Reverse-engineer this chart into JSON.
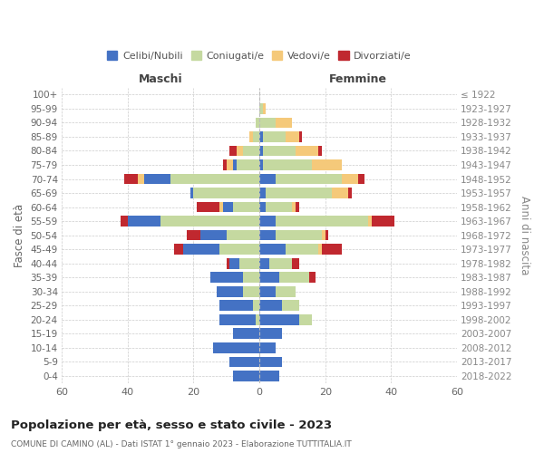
{
  "age_groups": [
    "0-4",
    "5-9",
    "10-14",
    "15-19",
    "20-24",
    "25-29",
    "30-34",
    "35-39",
    "40-44",
    "45-49",
    "50-54",
    "55-59",
    "60-64",
    "65-69",
    "70-74",
    "75-79",
    "80-84",
    "85-89",
    "90-94",
    "95-99",
    "100+"
  ],
  "birth_years": [
    "2018-2022",
    "2013-2017",
    "2008-2012",
    "2003-2007",
    "1998-2002",
    "1993-1997",
    "1988-1992",
    "1983-1987",
    "1978-1982",
    "1973-1977",
    "1968-1972",
    "1963-1967",
    "1958-1962",
    "1953-1957",
    "1948-1952",
    "1943-1947",
    "1938-1942",
    "1933-1937",
    "1928-1932",
    "1923-1927",
    "≤ 1922"
  ],
  "colors": {
    "celibi": "#4472C4",
    "coniugati": "#C5D9A0",
    "vedovi": "#F5C97A",
    "divorziati": "#C0282F"
  },
  "males": {
    "celibi": [
      8,
      9,
      14,
      8,
      11,
      10,
      8,
      10,
      3,
      11,
      8,
      10,
      3,
      1,
      8,
      1,
      0,
      0,
      0,
      0,
      0
    ],
    "coniugati": [
      0,
      0,
      0,
      0,
      1,
      2,
      5,
      5,
      6,
      12,
      10,
      30,
      8,
      20,
      27,
      7,
      5,
      2,
      1,
      0,
      0
    ],
    "vedovi": [
      0,
      0,
      0,
      0,
      0,
      0,
      0,
      0,
      0,
      0,
      0,
      0,
      1,
      0,
      2,
      2,
      2,
      1,
      0,
      0,
      0
    ],
    "divorziati": [
      0,
      0,
      0,
      0,
      0,
      0,
      0,
      0,
      1,
      3,
      4,
      2,
      7,
      0,
      4,
      1,
      2,
      0,
      0,
      0,
      0
    ]
  },
  "females": {
    "nubili": [
      6,
      7,
      5,
      7,
      12,
      7,
      5,
      6,
      3,
      8,
      5,
      5,
      2,
      2,
      5,
      1,
      1,
      1,
      0,
      0,
      0
    ],
    "coniugate": [
      0,
      0,
      0,
      0,
      4,
      5,
      6,
      9,
      7,
      10,
      14,
      28,
      8,
      20,
      20,
      15,
      10,
      7,
      5,
      1,
      0
    ],
    "vedove": [
      0,
      0,
      0,
      0,
      0,
      0,
      0,
      0,
      0,
      1,
      1,
      1,
      1,
      5,
      5,
      9,
      7,
      4,
      5,
      1,
      0
    ],
    "divorziate": [
      0,
      0,
      0,
      0,
      0,
      0,
      0,
      2,
      2,
      6,
      1,
      7,
      1,
      1,
      2,
      0,
      1,
      1,
      0,
      0,
      0
    ]
  },
  "xlim": 60,
  "title": "Popolazione per età, sesso e stato civile - 2023",
  "subtitle": "COMUNE DI CAMINO (AL) - Dati ISTAT 1° gennaio 2023 - Elaborazione TUTTITALIA.IT",
  "xlabel_left": "Maschi",
  "xlabel_right": "Femmine",
  "ylabel_left": "Fasce di età",
  "ylabel_right": "Anni di nascita",
  "legend_labels": [
    "Celibi/Nubili",
    "Coniugati/e",
    "Vedovi/e",
    "Divorziati/e"
  ],
  "bg_color": "#ffffff",
  "grid_color": "#cccccc"
}
